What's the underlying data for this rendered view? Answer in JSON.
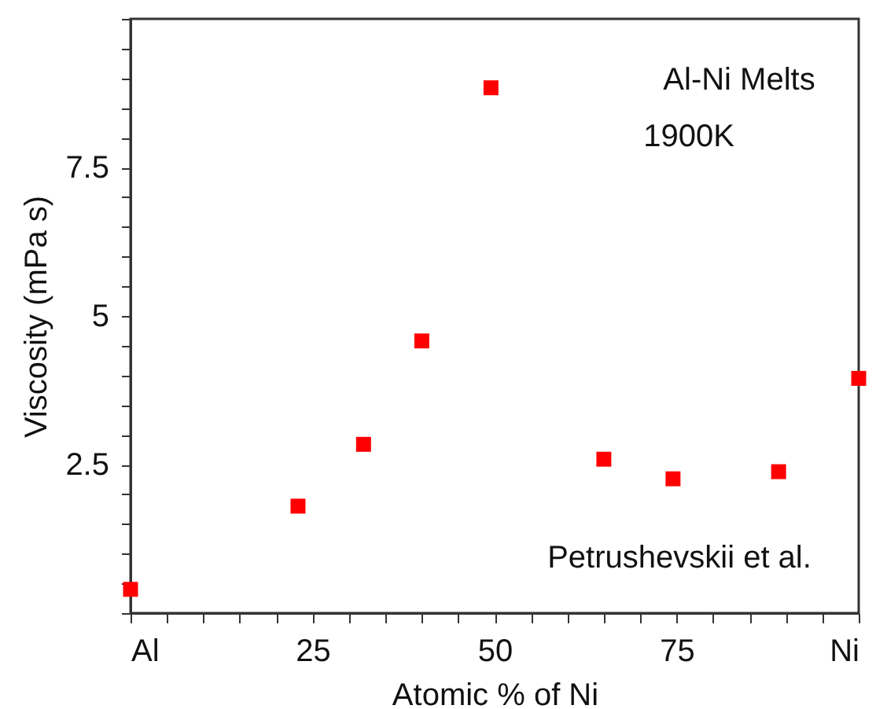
{
  "chart_data": {
    "type": "scatter",
    "xlabel": "Atomic % of Ni",
    "ylabel": "Viscosity (mPa s)",
    "annotations": [
      "Al-Ni Melts",
      "1900K",
      "Petrushevskii et al."
    ],
    "x": [
      0,
      23,
      32,
      40,
      49.5,
      65,
      74.5,
      89,
      100
    ],
    "series": [
      {
        "color": "#ff0000",
        "values": [
          0.4,
          1.8,
          2.84,
          4.58,
          8.84,
          2.59,
          2.26,
          2.38,
          3.95
        ]
      }
    ],
    "marker": "square",
    "grid": false,
    "xlim": [
      0,
      100
    ],
    "ylim": [
      0,
      10
    ],
    "xticks": [
      {
        "value": 0,
        "label": "Al"
      },
      {
        "value": 5,
        "label": null
      },
      {
        "value": 10,
        "label": null
      },
      {
        "value": 15,
        "label": null
      },
      {
        "value": 20,
        "label": null
      },
      25,
      {
        "value": 30,
        "label": null
      },
      {
        "value": 35,
        "label": null
      },
      {
        "value": 40,
        "label": null
      },
      {
        "value": 45,
        "label": null
      },
      50,
      {
        "value": 55,
        "label": null
      },
      {
        "value": 60,
        "label": null
      },
      {
        "value": 65,
        "label": null
      },
      {
        "value": 70,
        "label": null
      },
      75,
      {
        "value": 80,
        "label": null
      },
      {
        "value": 85,
        "label": null
      },
      {
        "value": 90,
        "label": null
      },
      {
        "value": 95,
        "label": null
      },
      {
        "value": 100,
        "label": "Ni"
      }
    ],
    "yticks": [
      {
        "value": 0,
        "label": null
      },
      {
        "value": 0.5,
        "label": null
      },
      {
        "value": 1,
        "label": null
      },
      {
        "value": 1.5,
        "label": null
      },
      {
        "value": 2,
        "label": null
      },
      2.5,
      {
        "value": 3,
        "label": null
      },
      {
        "value": 3.5,
        "label": null
      },
      {
        "value": 4,
        "label": null
      },
      {
        "value": 4.5,
        "label": null
      },
      5,
      {
        "value": 5.5,
        "label": null
      },
      {
        "value": 6,
        "label": null
      },
      {
        "value": 6.5,
        "label": null
      },
      {
        "value": 7,
        "label": null
      },
      7.5,
      {
        "value": 8,
        "label": null
      },
      {
        "value": 8.5,
        "label": null
      },
      {
        "value": 9,
        "label": null
      },
      {
        "value": 9.5,
        "label": null
      },
      {
        "value": 10,
        "label": null
      }
    ]
  }
}
